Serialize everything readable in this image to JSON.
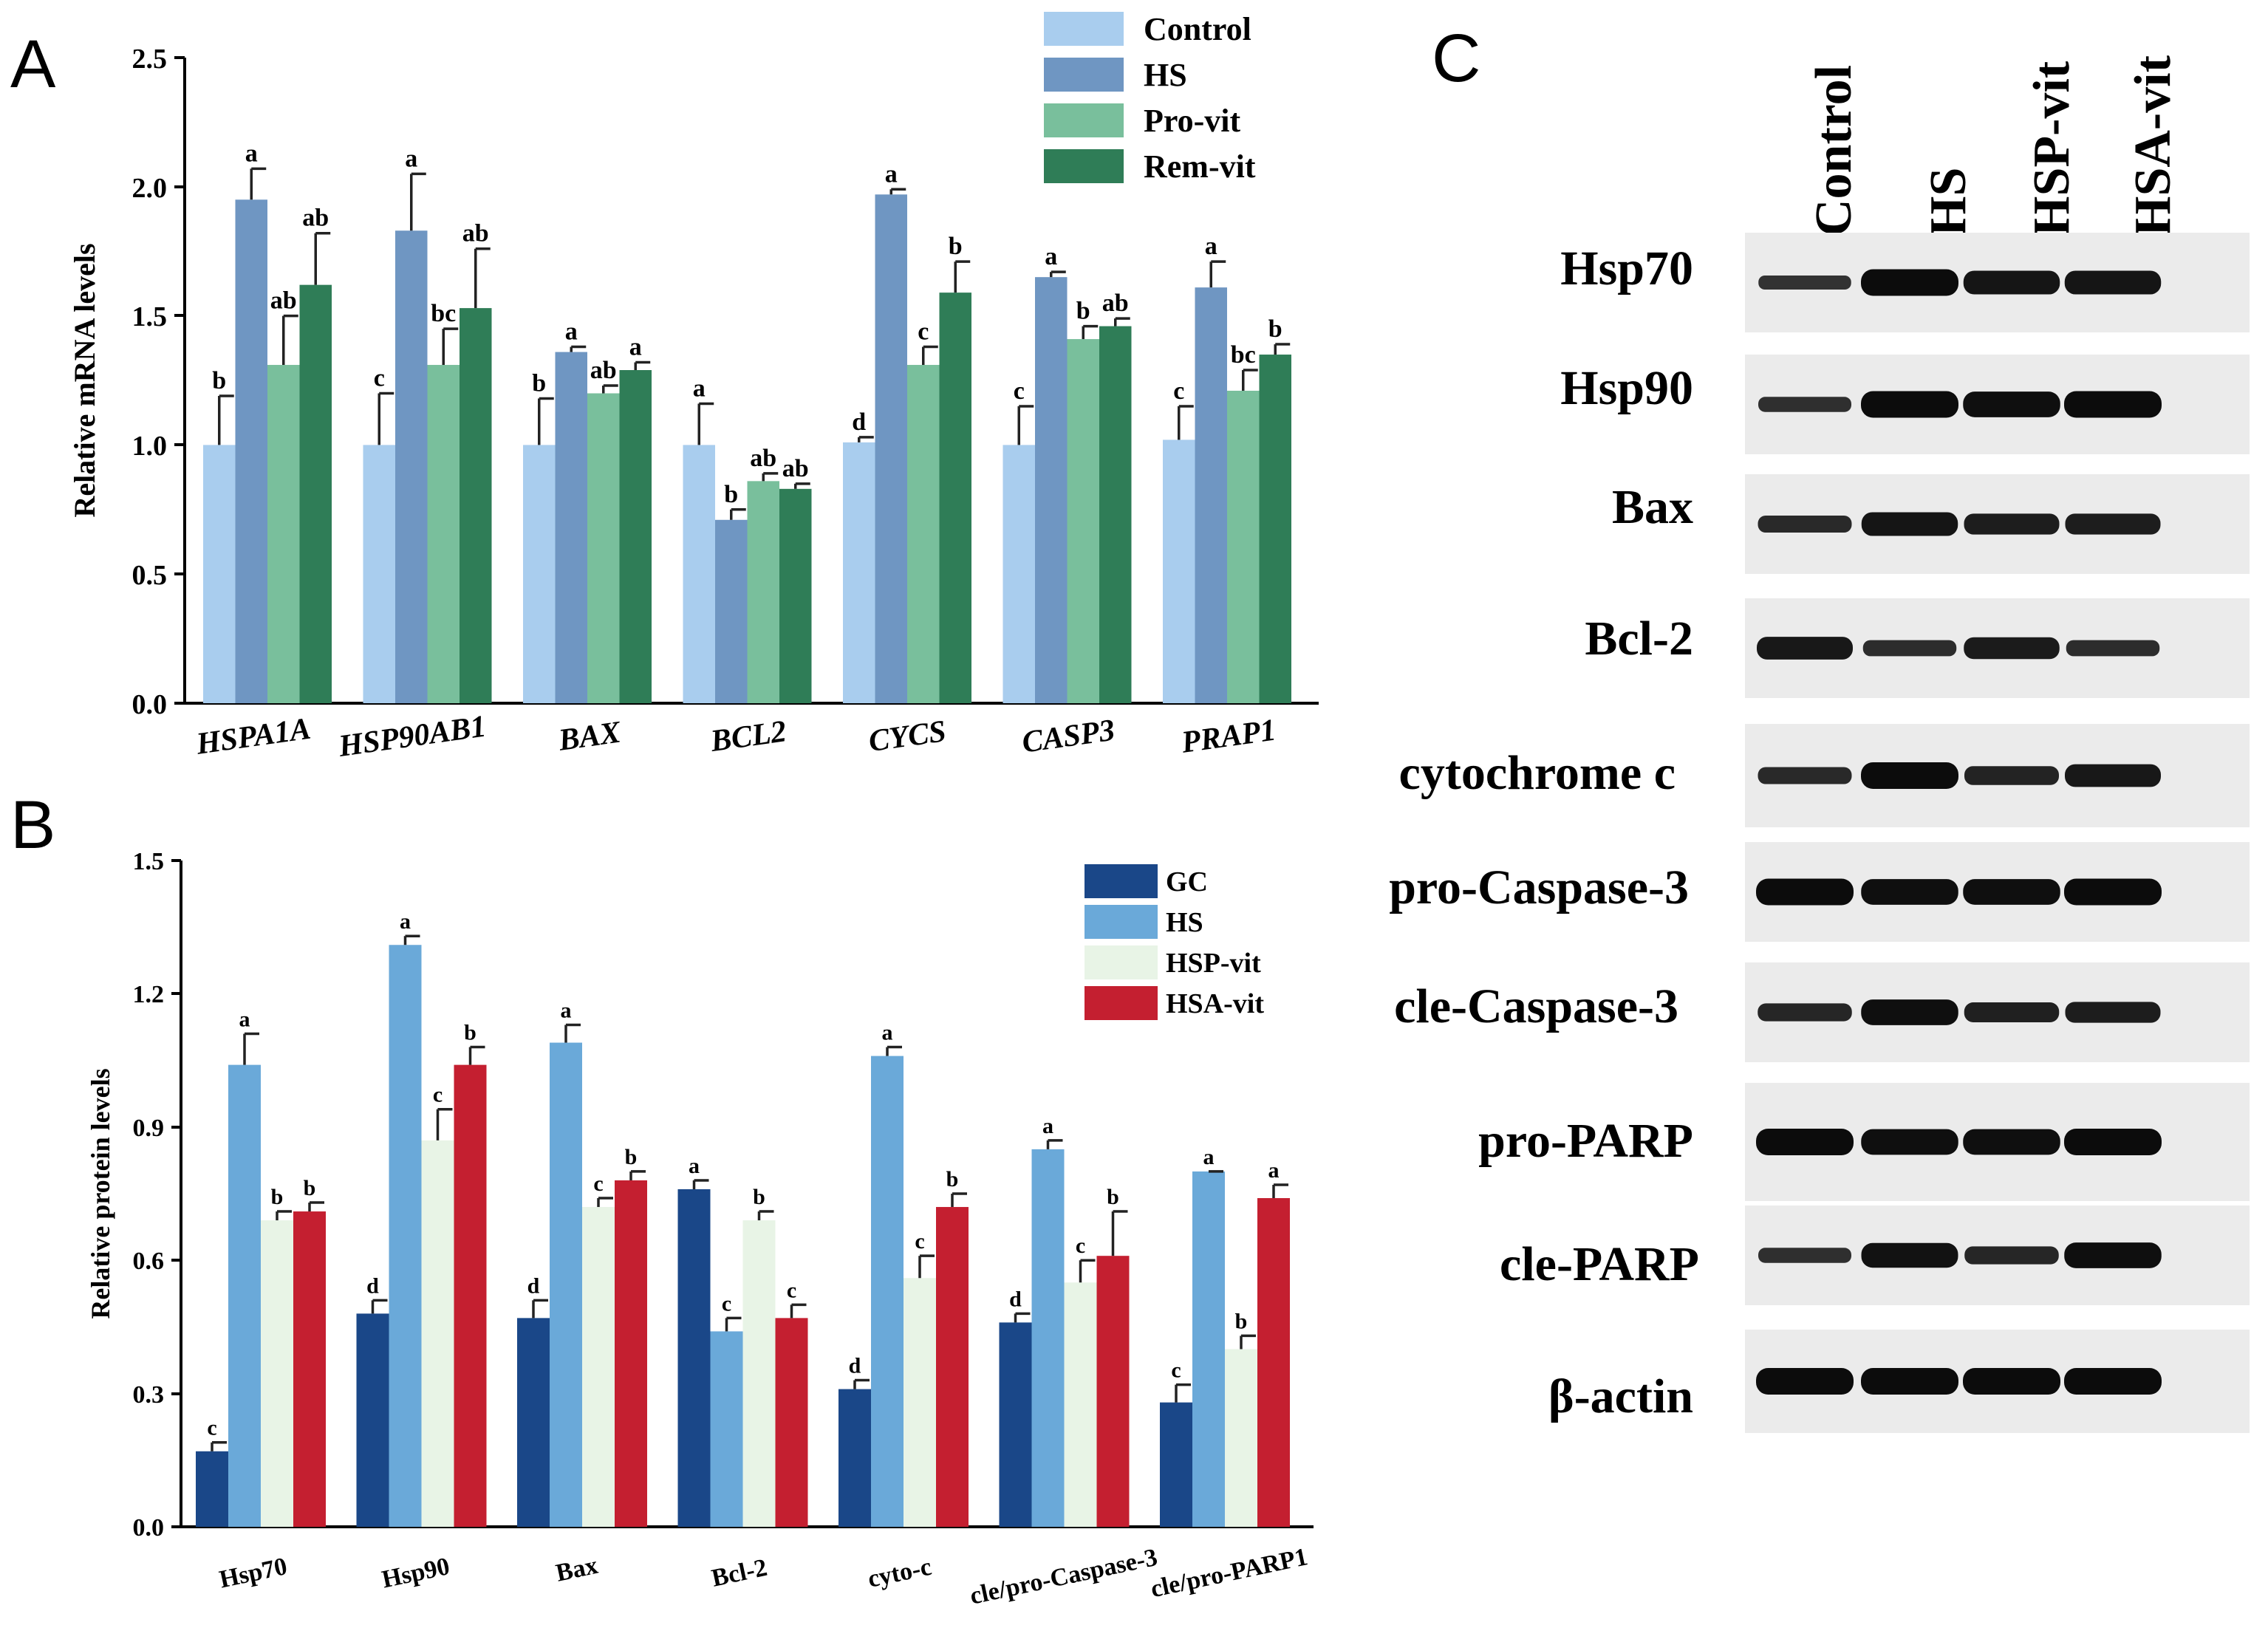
{
  "panel_labels": {
    "a": "A",
    "b": "B",
    "c": "C"
  },
  "chart_data": [
    {
      "panel": "A",
      "type": "bar",
      "title": "",
      "xlabel": "",
      "ylabel": "Relative mRNA levels",
      "ylim": [
        0,
        2.5
      ],
      "yticks": [
        "0.0",
        "0.5",
        "1.0",
        "1.5",
        "2.0",
        "2.5"
      ],
      "grid": false,
      "legend_position": "top-right",
      "categories": [
        "HSPA1A",
        "HSP90AB1",
        "BAX",
        "BCL2",
        "CYCS",
        "CASP3",
        "PRAP1"
      ],
      "series": [
        {
          "name": "Control",
          "color": "#a9cdee",
          "values": [
            1.0,
            1.0,
            1.0,
            1.0,
            1.01,
            1.0,
            1.02
          ],
          "errors": [
            0.19,
            0.2,
            0.18,
            0.16,
            0.02,
            0.15,
            0.13
          ],
          "labels": [
            "b",
            "c",
            "b",
            "a",
            "d",
            "c",
            "c"
          ]
        },
        {
          "name": "HS",
          "color": "#6f96c2",
          "values": [
            1.95,
            1.83,
            1.36,
            0.71,
            1.97,
            1.65,
            1.61
          ],
          "errors": [
            0.12,
            0.22,
            0.02,
            0.04,
            0.02,
            0.02,
            0.1
          ],
          "labels": [
            "a",
            "a",
            "a",
            "b",
            "a",
            "a",
            "a"
          ]
        },
        {
          "name": "Pro-vit",
          "color": "#79bf9c",
          "values": [
            1.31,
            1.31,
            1.2,
            0.86,
            1.31,
            1.41,
            1.21
          ],
          "errors": [
            0.19,
            0.14,
            0.03,
            0.03,
            0.07,
            0.05,
            0.08
          ],
          "labels": [
            "ab",
            "bc",
            "ab",
            "ab",
            "c",
            "b",
            "bc"
          ]
        },
        {
          "name": "Rem-vit",
          "color": "#2f7d57",
          "values": [
            1.62,
            1.53,
            1.29,
            0.83,
            1.59,
            1.46,
            1.35
          ],
          "errors": [
            0.2,
            0.23,
            0.03,
            0.02,
            0.12,
            0.03,
            0.04
          ],
          "labels": [
            "ab",
            "ab",
            "a",
            "ab",
            "b",
            "ab",
            "b"
          ]
        }
      ]
    },
    {
      "panel": "B",
      "type": "bar",
      "title": "",
      "xlabel": "",
      "ylabel": "Relative protein levels",
      "ylim": [
        0,
        1.5
      ],
      "yticks": [
        "0.0",
        "0.3",
        "0.6",
        "0.9",
        "1.2",
        "1.5"
      ],
      "grid": false,
      "legend_position": "top-right",
      "categories": [
        "Hsp70",
        "Hsp90",
        "Bax",
        "Bcl-2",
        "cyto-c",
        "cle/pro-Caspase-3",
        "cle/pro-PARP1"
      ],
      "series": [
        {
          "name": "GC",
          "color": "#1a4788",
          "values": [
            0.17,
            0.48,
            0.47,
            0.76,
            0.31,
            0.46,
            0.28
          ],
          "errors": [
            0.02,
            0.03,
            0.04,
            0.02,
            0.02,
            0.02,
            0.04
          ],
          "labels": [
            "c",
            "d",
            "d",
            "a",
            "d",
            "d",
            "c"
          ]
        },
        {
          "name": "HS",
          "color": "#6aa9d9",
          "values": [
            1.04,
            1.31,
            1.09,
            0.44,
            1.06,
            0.85,
            0.8
          ],
          "errors": [
            0.07,
            0.02,
            0.04,
            0.03,
            0.02,
            0.02,
            0.0
          ],
          "labels": [
            "a",
            "a",
            "a",
            "c",
            "a",
            "a",
            "a"
          ]
        },
        {
          "name": "HSP-vit",
          "color": "#e8f4e6",
          "values": [
            0.69,
            0.87,
            0.72,
            0.69,
            0.56,
            0.55,
            0.4
          ],
          "errors": [
            0.02,
            0.07,
            0.02,
            0.02,
            0.05,
            0.05,
            0.03
          ],
          "labels": [
            "b",
            "c",
            "c",
            "b",
            "c",
            "c",
            "b"
          ]
        },
        {
          "name": "HSA-vit",
          "color": "#c41f30",
          "values": [
            0.71,
            1.04,
            0.78,
            0.47,
            0.72,
            0.61,
            0.74
          ],
          "errors": [
            0.02,
            0.04,
            0.02,
            0.03,
            0.03,
            0.1,
            0.03
          ],
          "labels": [
            "b",
            "b",
            "b",
            "c",
            "b",
            "b",
            "a"
          ]
        }
      ]
    }
  ],
  "western_blot": {
    "lanes": [
      "Control",
      "HS",
      "HSP-vit",
      "HSA-vit"
    ],
    "proteins": [
      "Hsp70",
      "Hsp90",
      "Bax",
      "Bcl-2",
      "cytochrome c",
      "pro-Caspase-3",
      "cle-Caspase-3",
      "pro-PARP",
      "cle-PARP",
      "β-actin"
    ],
    "band_intensity": [
      [
        0.35,
        1.0,
        0.85,
        0.85
      ],
      [
        0.4,
        1.0,
        0.95,
        1.0
      ],
      [
        0.5,
        0.85,
        0.7,
        0.7
      ],
      [
        0.8,
        0.45,
        0.75,
        0.45
      ],
      [
        0.5,
        1.0,
        0.6,
        0.8
      ],
      [
        1.0,
        0.95,
        0.95,
        1.0
      ],
      [
        0.55,
        0.95,
        0.65,
        0.7
      ],
      [
        1.0,
        0.95,
        0.95,
        1.0
      ],
      [
        0.4,
        0.9,
        0.55,
        0.95
      ],
      [
        1.0,
        1.0,
        1.0,
        1.0
      ]
    ]
  }
}
